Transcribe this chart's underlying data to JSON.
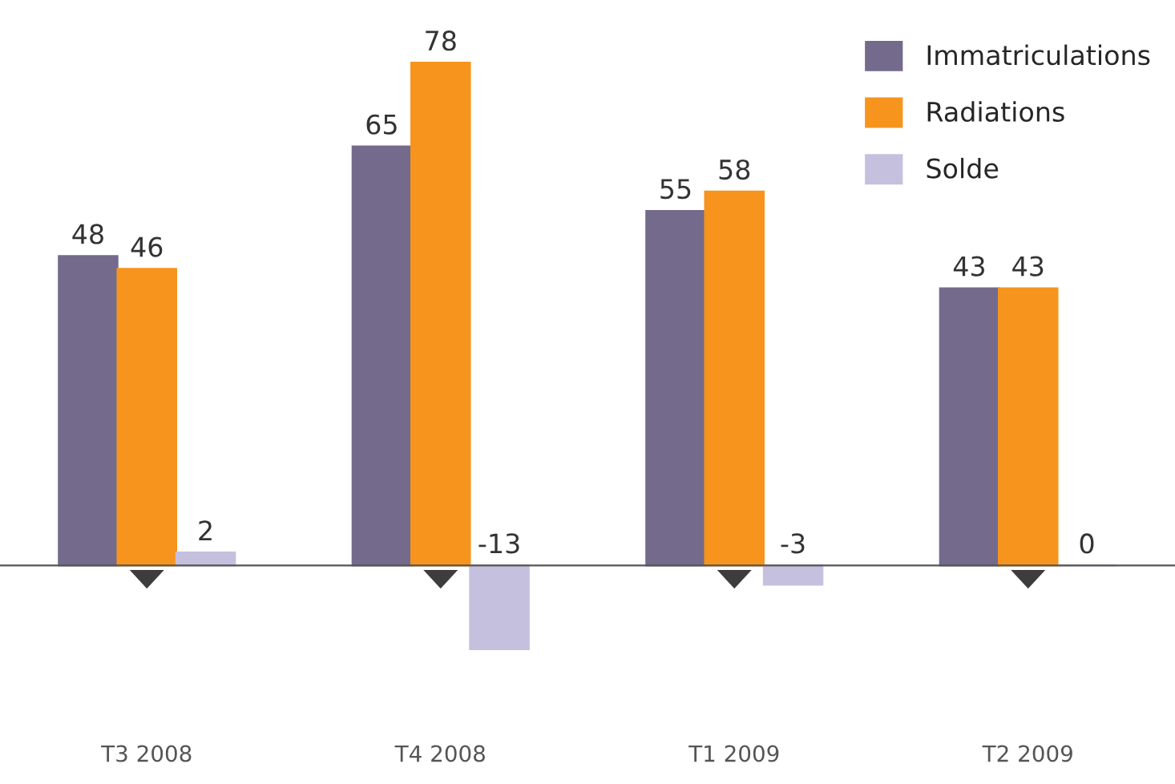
{
  "chart_data": {
    "type": "bar",
    "categories": [
      "T3 2008",
      "T4 2008",
      "T1 2009",
      "T2 2009"
    ],
    "series": [
      {
        "name": "Immatriculations",
        "color": "#736a8c",
        "values": [
          48,
          65,
          55,
          43
        ]
      },
      {
        "name": "Radiations",
        "color": "#f7941d",
        "values": [
          46,
          78,
          58,
          43
        ]
      },
      {
        "name": "Solde",
        "color": "#c5c0de",
        "values": [
          2,
          -13,
          -3,
          0
        ]
      }
    ],
    "data_labels": true,
    "legend": "top right",
    "grid": false
  }
}
